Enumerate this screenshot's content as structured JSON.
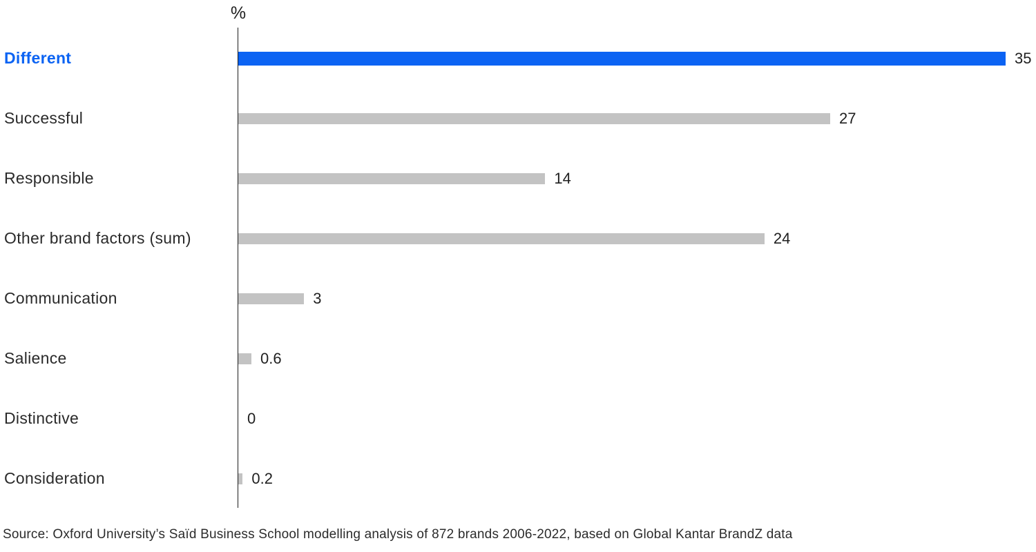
{
  "chart_data": {
    "type": "bar",
    "orientation": "horizontal",
    "title": "",
    "unit_label": "%",
    "categories": [
      "Different",
      "Successful",
      "Responsible",
      "Other brand factors (sum)",
      "Communication",
      "Salience",
      "Distinctive",
      "Consideration"
    ],
    "values": [
      35,
      27,
      14,
      24,
      3,
      0.6,
      0,
      0.2
    ],
    "value_labels": [
      "35",
      "27",
      "14",
      "24",
      "3",
      "0.6",
      "0",
      "0.2"
    ],
    "xlim": [
      0,
      35.5
    ],
    "grid": false,
    "legend": false,
    "highlight_index": 0,
    "colors": {
      "highlight_bar": "#0b63f3",
      "highlight_label": "#0b63f3",
      "default_bar": "#c3c3c3",
      "text": "#1f1f1f",
      "axis": "#1a1a1a"
    },
    "source": "Source: Oxford University’s Saïd Business School modelling analysis of 872 brands 2006-2022, based on Global Kantar BrandZ data"
  }
}
